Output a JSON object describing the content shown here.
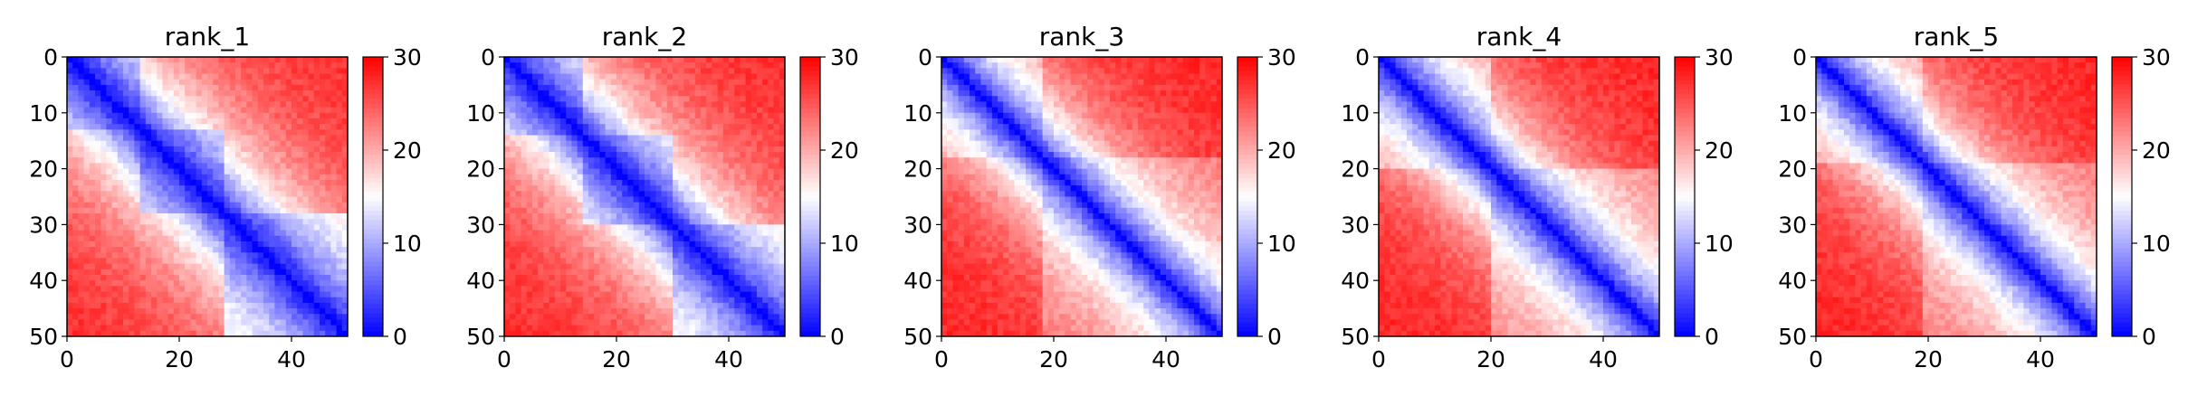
{
  "chart_data": [
    {
      "type": "heatmap",
      "title": "rank_1",
      "xlabel": "",
      "ylabel": "",
      "grid": false,
      "x_ticks": [
        "0",
        "20",
        "40"
      ],
      "y_ticks": [
        "0",
        "10",
        "20",
        "30",
        "40",
        "50"
      ],
      "xlim": [
        0,
        50
      ],
      "ylim": [
        50,
        0
      ],
      "colorbar": {
        "ticks": [
          "0",
          "10",
          "20",
          "30"
        ],
        "range": [
          0,
          30
        ],
        "cmap": "bwr"
      },
      "matrix": {
        "size": 50,
        "model": "approximate distance map: value rises from ~0 on the diagonal toward ~28 far from it",
        "diagonal_value": 0,
        "far_value": 28,
        "band_width": 14,
        "domains": [
          [
            0,
            13
          ],
          [
            13,
            28
          ],
          [
            28,
            50
          ]
        ],
        "domain_factor": 0.72
      }
    },
    {
      "type": "heatmap",
      "title": "rank_2",
      "xlabel": "",
      "ylabel": "",
      "grid": false,
      "x_ticks": [
        "0",
        "20",
        "40"
      ],
      "y_ticks": [
        "0",
        "10",
        "20",
        "30",
        "40",
        "50"
      ],
      "xlim": [
        0,
        50
      ],
      "ylim": [
        50,
        0
      ],
      "colorbar": {
        "ticks": [
          "0",
          "10",
          "20",
          "30"
        ],
        "range": [
          0,
          30
        ],
        "cmap": "bwr"
      },
      "matrix": {
        "size": 50,
        "model": "approximate distance map: value rises from ~0 on the diagonal toward ~28 far from it",
        "diagonal_value": 0,
        "far_value": 28,
        "band_width": 13,
        "domains": [
          [
            0,
            14
          ],
          [
            14,
            30
          ],
          [
            30,
            50
          ]
        ],
        "domain_factor": 0.72
      }
    },
    {
      "type": "heatmap",
      "title": "rank_3",
      "xlabel": "",
      "ylabel": "",
      "grid": false,
      "x_ticks": [
        "0",
        "20",
        "40"
      ],
      "y_ticks": [
        "0",
        "10",
        "20",
        "30",
        "40",
        "50"
      ],
      "xlim": [
        0,
        50
      ],
      "ylim": [
        50,
        0
      ],
      "colorbar": {
        "ticks": [
          "0",
          "10",
          "20",
          "30"
        ],
        "range": [
          0,
          30
        ],
        "cmap": "bwr"
      },
      "matrix": {
        "size": 50,
        "model": "approximate distance map: value rises from ~0 on the diagonal toward ~28 far from it",
        "diagonal_value": 0,
        "far_value": 28,
        "band_width": 11,
        "domains": [
          [
            0,
            18
          ],
          [
            18,
            50
          ]
        ],
        "domain_factor": 0.85
      }
    },
    {
      "type": "heatmap",
      "title": "rank_4",
      "xlabel": "",
      "ylabel": "",
      "grid": false,
      "x_ticks": [
        "0",
        "20",
        "40"
      ],
      "y_ticks": [
        "0",
        "10",
        "20",
        "30",
        "40",
        "50"
      ],
      "xlim": [
        0,
        50
      ],
      "ylim": [
        50,
        0
      ],
      "colorbar": {
        "ticks": [
          "0",
          "10",
          "20",
          "30"
        ],
        "range": [
          0,
          30
        ],
        "cmap": "bwr"
      },
      "matrix": {
        "size": 50,
        "model": "approximate distance map: value rises from ~0 on the diagonal toward ~28 far from it",
        "diagonal_value": 0,
        "far_value": 28,
        "band_width": 11,
        "domains": [
          [
            0,
            20
          ],
          [
            20,
            50
          ]
        ],
        "domain_factor": 0.82
      }
    },
    {
      "type": "heatmap",
      "title": "rank_5",
      "xlabel": "",
      "ylabel": "",
      "grid": false,
      "x_ticks": [
        "0",
        "20",
        "40"
      ],
      "y_ticks": [
        "0",
        "10",
        "20",
        "30",
        "40",
        "50"
      ],
      "xlim": [
        0,
        50
      ],
      "ylim": [
        50,
        0
      ],
      "colorbar": {
        "ticks": [
          "0",
          "10",
          "20",
          "30"
        ],
        "range": [
          0,
          30
        ],
        "cmap": "bwr"
      },
      "matrix": {
        "size": 50,
        "model": "approximate distance map: value rises from ~0 on the diagonal toward ~28 far from it",
        "diagonal_value": 0,
        "far_value": 28,
        "band_width": 11,
        "domains": [
          [
            0,
            19
          ],
          [
            19,
            50
          ]
        ],
        "domain_factor": 0.85
      }
    }
  ],
  "colors": {
    "low": "#0000ff",
    "mid": "#ffffff",
    "high": "#ff0000",
    "axis": "#000000",
    "background": "#ffffff"
  }
}
